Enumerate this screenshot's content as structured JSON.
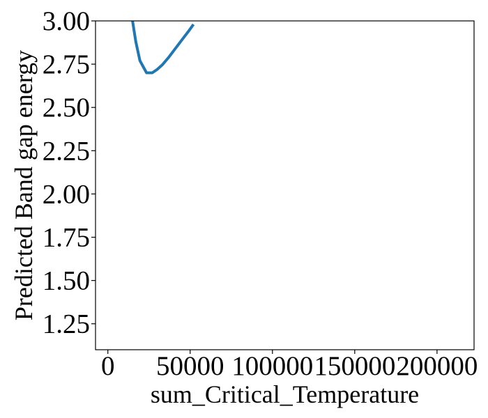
{
  "chart_data": {
    "type": "line",
    "title": "",
    "xlabel": "sum_Critical_Temperature",
    "ylabel": "Predicted Band gap energy",
    "xlim": [
      -7500,
      222500
    ],
    "ylim": [
      1.1,
      3.0
    ],
    "x_ticks": [
      0,
      50000,
      100000,
      150000,
      200000
    ],
    "x_tick_labels": [
      "0",
      "50000",
      "100000",
      "150000",
      "200000"
    ],
    "y_ticks": [
      1.25,
      1.5,
      1.75,
      2.0,
      2.25,
      2.5,
      2.75,
      3.0
    ],
    "y_tick_labels": [
      "1.25",
      "1.50",
      "1.75",
      "2.00",
      "2.25",
      "2.50",
      "2.75",
      "3.00"
    ],
    "grid": false,
    "legend": "none",
    "series": [
      {
        "color": "#1f77b4",
        "x": [
          15000,
          17000,
          19500,
          23500,
          27000,
          30000,
          33000,
          37000,
          41000,
          45000,
          49000,
          52000
        ],
        "y": [
          3.0,
          2.88,
          2.77,
          2.7,
          2.7,
          2.72,
          2.745,
          2.79,
          2.84,
          2.89,
          2.94,
          2.98
        ]
      }
    ]
  }
}
